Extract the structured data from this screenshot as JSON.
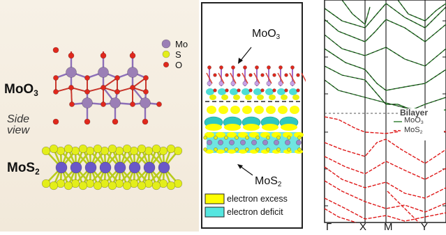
{
  "left": {
    "moo3_label": "MoO",
    "moo3_sub": "3",
    "side_view_line1": "Side",
    "side_view_line2": "view",
    "mos2_label": "MoS",
    "mos2_sub": "2",
    "legend": [
      {
        "symbol": "Mo",
        "color": "#9b7fb6"
      },
      {
        "symbol": "S",
        "color": "#e3ee1a"
      },
      {
        "symbol": "O",
        "color": "#e0281c"
      }
    ]
  },
  "middle": {
    "moo3_label": "MoO",
    "moo3_sub": "3",
    "mos2_label": "MoS",
    "mos2_sub": "2",
    "legend": [
      {
        "label": "electron excess",
        "color": "#ffff00"
      },
      {
        "label": "electron deficit",
        "color": "#55e6e0"
      }
    ]
  },
  "right": {
    "legend_title": "Bilayer",
    "legend_items": [
      {
        "label": "MoO",
        "sub": "3",
        "color": "#2a7a2a"
      },
      {
        "label": "MoS",
        "sub": "2",
        "color": "#e01818"
      }
    ],
    "k_labels": [
      "Γ",
      "X",
      "M",
      "Y"
    ]
  }
}
